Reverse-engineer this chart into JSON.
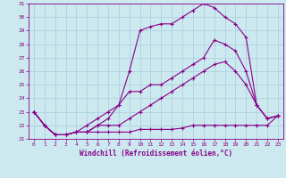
{
  "xlabel": "Windchill (Refroidissement éolien,°C)",
  "xlim": [
    -0.5,
    23.5
  ],
  "ylim": [
    21,
    31
  ],
  "yticks": [
    21,
    22,
    23,
    24,
    25,
    26,
    27,
    28,
    29,
    30,
    31
  ],
  "xticks": [
    0,
    1,
    2,
    3,
    4,
    5,
    6,
    7,
    8,
    9,
    10,
    11,
    12,
    13,
    14,
    15,
    16,
    17,
    18,
    19,
    20,
    21,
    22,
    23
  ],
  "background_color": "#cce9f0",
  "line_color": "#880088",
  "grid_color": "#aaccdd",
  "line1_x": [
    0,
    1,
    2,
    3,
    4,
    5,
    6,
    7,
    8,
    9,
    10,
    11,
    12,
    13,
    14,
    15,
    16,
    17,
    18,
    19,
    20,
    21,
    22,
    23
  ],
  "line1_y": [
    23,
    22,
    21.3,
    21.3,
    21.5,
    21.5,
    21.5,
    21.5,
    21.5,
    21.5,
    21.7,
    21.7,
    21.7,
    21.7,
    21.8,
    22,
    22,
    22,
    22,
    22,
    22,
    22,
    22.0,
    22.7
  ],
  "line2_x": [
    0,
    1,
    2,
    3,
    4,
    5,
    6,
    7,
    8,
    9,
    10,
    11,
    12,
    13,
    14,
    15,
    16,
    17,
    18,
    19,
    20,
    21,
    22,
    23
  ],
  "line2_y": [
    23,
    22,
    21.3,
    21.3,
    21.5,
    21.5,
    22,
    22,
    22,
    22.5,
    23,
    23.5,
    24,
    24.5,
    25,
    25.5,
    26,
    26.5,
    26.7,
    26,
    25,
    23.5,
    22.5,
    22.7
  ],
  "line3_x": [
    0,
    1,
    2,
    3,
    4,
    5,
    6,
    7,
    8,
    9,
    10,
    11,
    12,
    13,
    14,
    15,
    16,
    17,
    18,
    19,
    20,
    21,
    22,
    23
  ],
  "line3_y": [
    23,
    22,
    21.3,
    21.3,
    21.5,
    21.5,
    22,
    22.5,
    23.5,
    24.5,
    24.5,
    25,
    25,
    25.5,
    26,
    26.5,
    27,
    28.3,
    28,
    27.5,
    26,
    23.5,
    22.5,
    22.7
  ],
  "line4_x": [
    0,
    1,
    2,
    3,
    4,
    5,
    6,
    7,
    8,
    9,
    10,
    11,
    12,
    13,
    14,
    15,
    16,
    17,
    18,
    19,
    20,
    21,
    22,
    23
  ],
  "line4_y": [
    23,
    22,
    21.3,
    21.3,
    21.5,
    22,
    22.5,
    23,
    23.5,
    26,
    29,
    29.3,
    29.5,
    29.5,
    30,
    30.5,
    31,
    30.7,
    30,
    29.5,
    28.5,
    23.5,
    22.5,
    22.7
  ]
}
